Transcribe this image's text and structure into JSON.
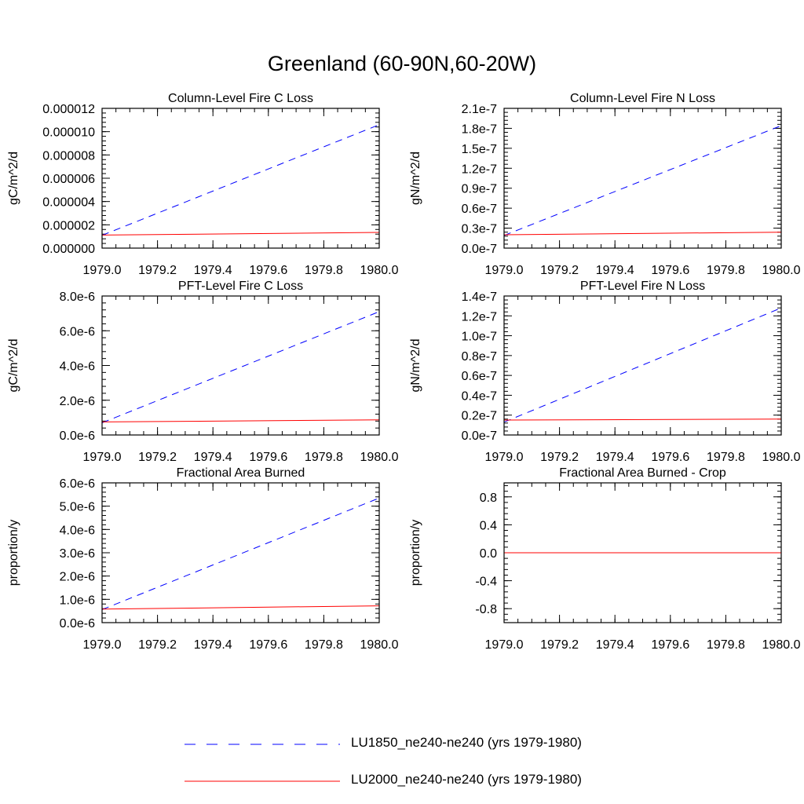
{
  "title": "Greenland (60-90N,60-20W)",
  "colors": {
    "LU1850": "#0000ff",
    "LU2000": "#ff0000"
  },
  "legend": [
    {
      "label": "LU1850_ne240-ne240 (yrs 1979-1980)",
      "style": "dashed",
      "color": "#0000ff"
    },
    {
      "label": "LU2000_ne240-ne240 (yrs 1979-1980)",
      "style": "solid",
      "color": "#ff0000"
    }
  ],
  "chart_data": [
    {
      "type": "line",
      "title": "Column-Level Fire C Loss",
      "xlabel": "",
      "ylabel": "gC/m^2/d",
      "xlim": [
        1979.0,
        1980.0
      ],
      "ylim": [
        0,
        1.2e-05
      ],
      "xticks": [
        1979.0,
        1979.2,
        1979.4,
        1979.6,
        1979.8,
        1980.0
      ],
      "xtick_labels": [
        "1979.0",
        "1979.2",
        "1979.4",
        "1979.6",
        "1979.8",
        "1980.0"
      ],
      "yticks": [
        0,
        2e-06,
        4e-06,
        6e-06,
        8e-06,
        1e-05,
        1.2e-05
      ],
      "ytick_labels": [
        "0.000000",
        "0.000002",
        "0.000004",
        "0.000006",
        "0.000008",
        "0.000010",
        "0.000012"
      ],
      "series": [
        {
          "name": "LU1850_ne240-ne240 (yrs 1979-1980)",
          "x": [
            1979.0,
            1980.0
          ],
          "y": [
            1.1e-06,
            1.06e-05
          ]
        },
        {
          "name": "LU2000_ne240-ne240 (yrs 1979-1980)",
          "x": [
            1979.0,
            1980.0
          ],
          "y": [
            1.12e-06,
            1.35e-06
          ]
        }
      ]
    },
    {
      "type": "line",
      "title": "Column-Level Fire N Loss",
      "xlabel": "",
      "ylabel": "gN/m^2/d",
      "xlim": [
        1979.0,
        1980.0
      ],
      "ylim": [
        0,
        2.1e-07
      ],
      "xticks": [
        1979.0,
        1979.2,
        1979.4,
        1979.6,
        1979.8,
        1980.0
      ],
      "xtick_labels": [
        "1979.0",
        "1979.2",
        "1979.4",
        "1979.6",
        "1979.8",
        "1980.0"
      ],
      "yticks": [
        0,
        3e-08,
        6e-08,
        9e-08,
        1.2e-07,
        1.5e-07,
        1.8e-07,
        2.1e-07
      ],
      "ytick_labels": [
        "0.0e-7",
        "0.3e-7",
        "0.6e-7",
        "0.9e-7",
        "1.2e-7",
        "1.5e-7",
        "1.8e-7",
        "2.1e-7"
      ],
      "series": [
        {
          "name": "LU1850_ne240-ne240 (yrs 1979-1980)",
          "x": [
            1979.0,
            1980.0
          ],
          "y": [
            1.9e-08,
            1.84e-07
          ]
        },
        {
          "name": "LU2000_ne240-ne240 (yrs 1979-1980)",
          "x": [
            1979.0,
            1980.0
          ],
          "y": [
            2e-08,
            2.4e-08
          ]
        }
      ]
    },
    {
      "type": "line",
      "title": "PFT-Level Fire C Loss",
      "xlabel": "",
      "ylabel": "gC/m^2/d",
      "xlim": [
        1979.0,
        1980.0
      ],
      "ylim": [
        0,
        8e-06
      ],
      "xticks": [
        1979.0,
        1979.2,
        1979.4,
        1979.6,
        1979.8,
        1980.0
      ],
      "xtick_labels": [
        "1979.0",
        "1979.2",
        "1979.4",
        "1979.6",
        "1979.8",
        "1980.0"
      ],
      "yticks": [
        0,
        2e-06,
        4e-06,
        6e-06,
        8e-06
      ],
      "ytick_labels": [
        "0.0e-6",
        "2.0e-6",
        "4.0e-6",
        "6.0e-6",
        "8.0e-6"
      ],
      "series": [
        {
          "name": "LU1850_ne240-ne240 (yrs 1979-1980)",
          "x": [
            1979.0,
            1980.0
          ],
          "y": [
            7e-07,
            7.1e-06
          ]
        },
        {
          "name": "LU2000_ne240-ne240 (yrs 1979-1980)",
          "x": [
            1979.0,
            1980.0
          ],
          "y": [
            7.5e-07,
            8.7e-07
          ]
        }
      ]
    },
    {
      "type": "line",
      "title": "PFT-Level Fire N Loss",
      "xlabel": "",
      "ylabel": "gN/m^2/d",
      "xlim": [
        1979.0,
        1980.0
      ],
      "ylim": [
        0,
        1.4e-07
      ],
      "xticks": [
        1979.0,
        1979.2,
        1979.4,
        1979.6,
        1979.8,
        1980.0
      ],
      "xtick_labels": [
        "1979.0",
        "1979.2",
        "1979.4",
        "1979.6",
        "1979.8",
        "1980.0"
      ],
      "yticks": [
        0,
        2e-08,
        4e-08,
        6e-08,
        8e-08,
        1e-07,
        1.2e-07,
        1.4e-07
      ],
      "ytick_labels": [
        "0.0e-7",
        "0.2e-7",
        "0.4e-7",
        "0.6e-7",
        "0.8e-7",
        "1.0e-7",
        "1.2e-7",
        "1.4e-7"
      ],
      "series": [
        {
          "name": "LU1850_ne240-ne240 (yrs 1979-1980)",
          "x": [
            1979.0,
            1980.0
          ],
          "y": [
            1.3e-08,
            1.28e-07
          ]
        },
        {
          "name": "LU2000_ne240-ne240 (yrs 1979-1980)",
          "x": [
            1979.0,
            1980.0
          ],
          "y": [
            1.5e-08,
            1.6e-08
          ]
        }
      ]
    },
    {
      "type": "line",
      "title": "Fractional Area Burned",
      "xlabel": "",
      "ylabel": "proportion/y",
      "xlim": [
        1979.0,
        1980.0
      ],
      "ylim": [
        0,
        6e-06
      ],
      "xticks": [
        1979.0,
        1979.2,
        1979.4,
        1979.6,
        1979.8,
        1980.0
      ],
      "xtick_labels": [
        "1979.0",
        "1979.2",
        "1979.4",
        "1979.6",
        "1979.8",
        "1980.0"
      ],
      "yticks": [
        0,
        1e-06,
        2e-06,
        3e-06,
        4e-06,
        5e-06,
        6e-06
      ],
      "ytick_labels": [
        "0.0e-6",
        "1.0e-6",
        "2.0e-6",
        "3.0e-6",
        "4.0e-6",
        "5.0e-6",
        "6.0e-6"
      ],
      "series": [
        {
          "name": "LU1850_ne240-ne240 (yrs 1979-1980)",
          "x": [
            1979.0,
            1980.0
          ],
          "y": [
            5.6e-07,
            5.35e-06
          ]
        },
        {
          "name": "LU2000_ne240-ne240 (yrs 1979-1980)",
          "x": [
            1979.0,
            1980.0
          ],
          "y": [
            5.8e-07,
            7.2e-07
          ]
        }
      ]
    },
    {
      "type": "line",
      "title": "Fractional Area Burned - Crop",
      "xlabel": "",
      "ylabel": "proportion/y",
      "xlim": [
        1979.0,
        1980.0
      ],
      "ylim": [
        -1.0,
        1.0
      ],
      "xticks": [
        1979.0,
        1979.2,
        1979.4,
        1979.6,
        1979.8,
        1980.0
      ],
      "xtick_labels": [
        "1979.0",
        "1979.2",
        "1979.4",
        "1979.6",
        "1979.8",
        "1980.0"
      ],
      "yticks": [
        -0.8,
        -0.4,
        0.0,
        0.4,
        0.8
      ],
      "ytick_labels": [
        "-0.8",
        "-0.4",
        "0.0",
        "0.4",
        "0.8"
      ],
      "series": [
        {
          "name": "LU1850_ne240-ne240 (yrs 1979-1980)",
          "x": [
            1979.0,
            1980.0
          ],
          "y": [
            0.0,
            0.0
          ]
        },
        {
          "name": "LU2000_ne240-ne240 (yrs 1979-1980)",
          "x": [
            1979.0,
            1980.0
          ],
          "y": [
            0.0,
            0.0
          ]
        }
      ]
    }
  ]
}
